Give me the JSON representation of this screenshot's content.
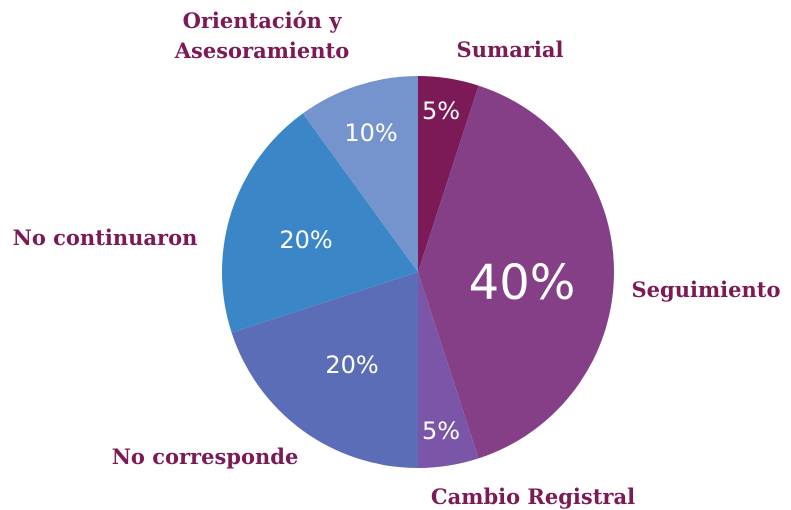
{
  "chart_data": {
    "type": "pie",
    "categories": [
      "Sumarial",
      "Seguimiento",
      "Cambio Registral",
      "No corresponde",
      "No continuaron",
      "Orientación y Asesoramiento"
    ],
    "values": [
      5,
      40,
      5,
      20,
      20,
      10
    ],
    "value_labels": [
      "5%",
      "40%",
      "5%",
      "20%",
      "20%",
      "10%"
    ],
    "colors": [
      "#7b1a57",
      "#853f86",
      "#7a55a8",
      "#5b6db6",
      "#3a86c6",
      "#7593cc"
    ]
  }
}
